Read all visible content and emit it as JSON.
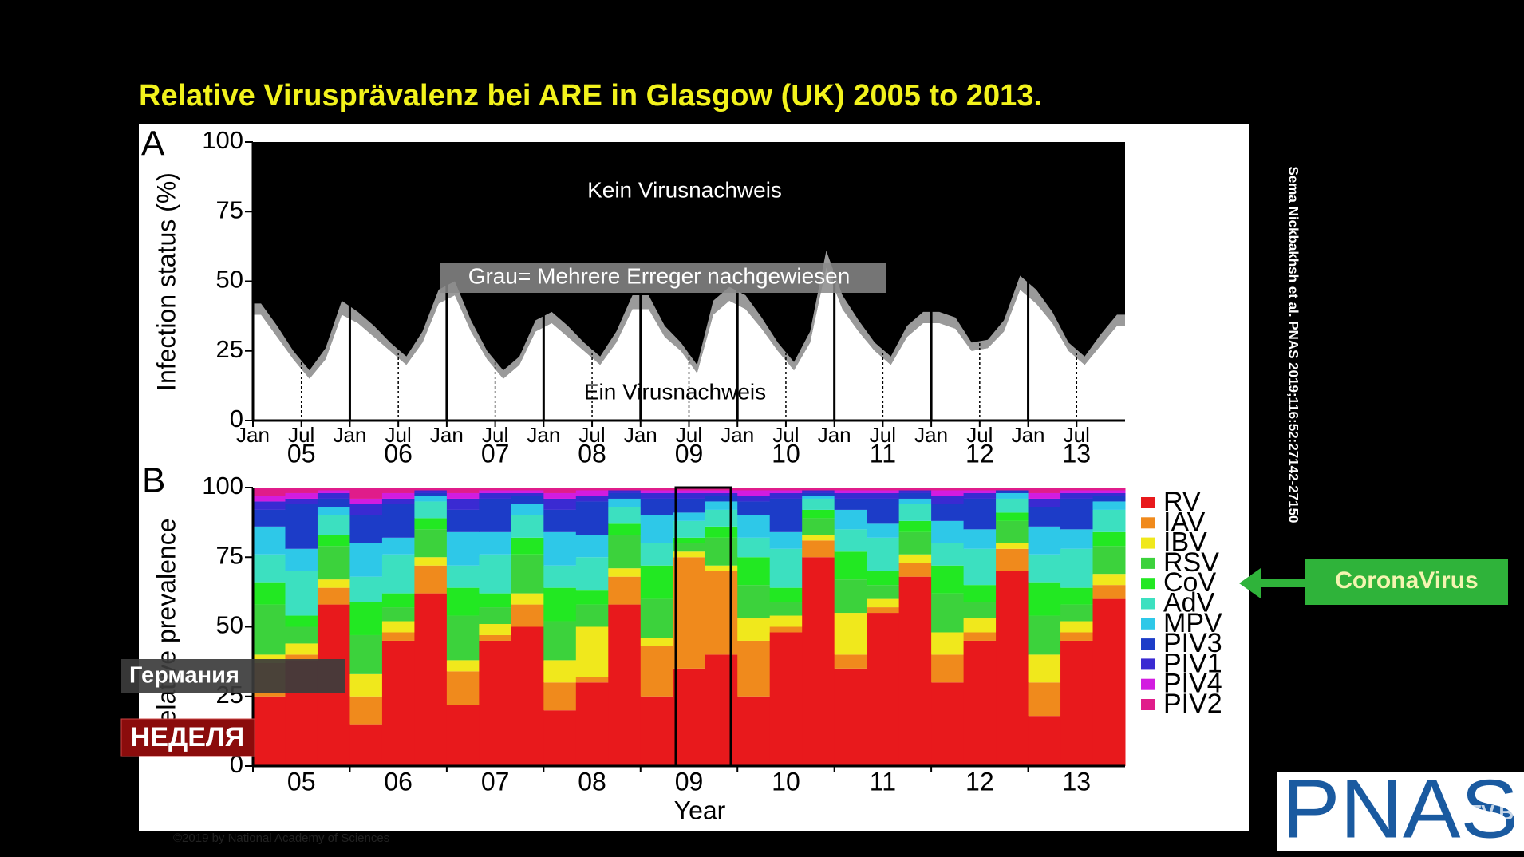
{
  "title": "Relative Virusprävalenz bei ARE in Glasgow (UK) 2005 to 2013.",
  "citation": "Sema Nickbakhsh et al. PNAS 2019;116:52:27142-27150",
  "callout": "CoronaVirus",
  "copyright": "©2019 by National Academy of Sciences",
  "logo": "PNAS",
  "watermark": "CTV.BY",
  "caption_location": "Германия",
  "caption_program": "НЕДЕЛЯ",
  "chart_data": [
    {
      "type": "area",
      "panel_label": "A",
      "y_label": "Infection status (%)",
      "annotations": [
        "Kein Virusnachweis",
        "Grau= Mehrere Erreger nachgewiesen",
        "Ein Virusnachweis"
      ],
      "categories": [
        "Jan",
        null,
        null,
        "Jul",
        null,
        null,
        "Jan",
        null,
        null,
        "Jul",
        null,
        null,
        "Jan",
        null,
        null,
        "Jul",
        null,
        null,
        "Jan",
        null,
        null,
        "Jul",
        null,
        null,
        "Jan",
        null,
        null,
        "Jul",
        null,
        null,
        "Jan",
        null,
        null,
        "Jul",
        null,
        null,
        "Jan",
        null,
        null,
        "Jul",
        null,
        null,
        "Jan",
        null,
        null,
        "Jul",
        null,
        null,
        "Jan",
        null,
        null,
        "Jul",
        null,
        null
      ],
      "group_labels": [
        "05",
        "06",
        "07",
        "08",
        "09",
        "10",
        "11",
        "12",
        "13"
      ],
      "series": [
        {
          "color": "#ffffff",
          "values": [
            38,
            30,
            22,
            15,
            22,
            38,
            35,
            30,
            25,
            20,
            28,
            42,
            45,
            32,
            22,
            15,
            20,
            32,
            35,
            30,
            25,
            20,
            28,
            40,
            40,
            30,
            25,
            17,
            38,
            43,
            40,
            33,
            25,
            18,
            28,
            55,
            40,
            32,
            25,
            20,
            30,
            35,
            35,
            33,
            25,
            26,
            32,
            47,
            42,
            35,
            25,
            20,
            27,
            34
          ]
        },
        {
          "color": "#9a9a9a",
          "values": [
            4,
            4,
            3,
            3,
            4,
            5,
            4,
            4,
            3,
            3,
            4,
            5,
            5,
            4,
            3,
            3,
            3,
            4,
            4,
            4,
            3,
            3,
            4,
            5,
            5,
            4,
            3,
            3,
            5,
            5,
            5,
            4,
            3,
            3,
            4,
            6,
            5,
            4,
            3,
            3,
            4,
            4,
            4,
            4,
            3,
            3,
            4,
            5,
            5,
            4,
            3,
            3,
            4,
            4
          ]
        }
      ],
      "ylim": [
        0,
        100
      ],
      "yticks": [
        0,
        25,
        50,
        75,
        100
      ]
    },
    {
      "type": "stacked-bar",
      "panel_label": "B",
      "y_label": "Relative prevalence",
      "x_label": "Year",
      "categories": [
        null,
        "05",
        null,
        null,
        "06",
        null,
        null,
        "07",
        null,
        null,
        "08",
        null,
        null,
        "09",
        null,
        null,
        "10",
        null,
        null,
        "11",
        null,
        null,
        "12",
        null,
        null,
        "13",
        null
      ],
      "series": [
        {
          "name": "RV",
          "color": "#e8191c",
          "values": [
            25,
            38,
            58,
            15,
            45,
            62,
            22,
            45,
            50,
            20,
            30,
            58,
            25,
            35,
            40,
            25,
            48,
            75,
            35,
            55,
            68,
            30,
            45,
            70,
            18,
            45,
            60
          ]
        },
        {
          "name": "IAV",
          "color": "#f08a1c",
          "values": [
            12,
            2,
            6,
            10,
            3,
            10,
            12,
            2,
            8,
            10,
            2,
            10,
            18,
            40,
            30,
            20,
            2,
            6,
            5,
            2,
            5,
            10,
            3,
            8,
            12,
            3,
            5
          ]
        },
        {
          "name": "IBV",
          "color": "#f0e81c",
          "values": [
            3,
            4,
            3,
            8,
            4,
            3,
            4,
            4,
            4,
            8,
            18,
            3,
            3,
            2,
            2,
            8,
            4,
            2,
            15,
            3,
            3,
            8,
            5,
            2,
            10,
            4,
            4
          ]
        },
        {
          "name": "RSV",
          "color": "#3cd23c",
          "values": [
            18,
            6,
            12,
            14,
            5,
            10,
            16,
            6,
            14,
            14,
            8,
            12,
            14,
            3,
            10,
            12,
            5,
            6,
            12,
            5,
            8,
            14,
            6,
            8,
            14,
            6,
            10
          ]
        },
        {
          "name": "CoV",
          "color": "#22e822",
          "values": [
            8,
            4,
            4,
            12,
            5,
            4,
            10,
            5,
            6,
            12,
            5,
            4,
            12,
            2,
            4,
            10,
            5,
            3,
            10,
            5,
            4,
            10,
            6,
            3,
            12,
            6,
            5
          ]
        },
        {
          "name": "AdV",
          "color": "#3ce0c0",
          "values": [
            10,
            16,
            7,
            9,
            14,
            6,
            8,
            14,
            8,
            8,
            12,
            6,
            8,
            6,
            6,
            7,
            14,
            4,
            8,
            12,
            6,
            8,
            13,
            5,
            10,
            14,
            8
          ]
        },
        {
          "name": "MPV",
          "color": "#2ec8e8",
          "values": [
            10,
            8,
            3,
            12,
            6,
            2,
            12,
            8,
            4,
            12,
            8,
            3,
            10,
            3,
            3,
            8,
            6,
            1,
            7,
            5,
            2,
            8,
            7,
            2,
            10,
            7,
            3
          ]
        },
        {
          "name": "PIV3",
          "color": "#1c3cc8",
          "values": [
            6,
            16,
            3,
            10,
            12,
            1,
            8,
            12,
            3,
            8,
            12,
            2,
            6,
            5,
            2,
            5,
            12,
            1,
            4,
            9,
            2,
            6,
            11,
            1,
            7,
            11,
            2
          ]
        },
        {
          "name": "PIV1",
          "color": "#3a2ad2",
          "values": [
            3,
            2,
            2,
            4,
            2,
            1,
            4,
            2,
            1,
            4,
            2,
            1,
            2,
            2,
            1,
            2,
            2,
            1,
            2,
            2,
            1,
            3,
            2,
            0,
            3,
            2,
            1
          ]
        },
        {
          "name": "PIV4",
          "color": "#d21ce0",
          "values": [
            2,
            2,
            1,
            2,
            2,
            0,
            2,
            1,
            1,
            2,
            2,
            0,
            1,
            1,
            1,
            2,
            1,
            0,
            1,
            1,
            0,
            2,
            1,
            0,
            2,
            1,
            1
          ]
        },
        {
          "name": "PIV2",
          "color": "#e01c8a",
          "values": [
            3,
            2,
            1,
            4,
            2,
            1,
            2,
            1,
            1,
            2,
            1,
            1,
            1,
            1,
            1,
            1,
            1,
            1,
            1,
            1,
            1,
            1,
            1,
            1,
            2,
            1,
            1
          ]
        }
      ],
      "ylim": [
        0,
        100
      ],
      "yticks": [
        0,
        25,
        50,
        75,
        100
      ]
    }
  ]
}
